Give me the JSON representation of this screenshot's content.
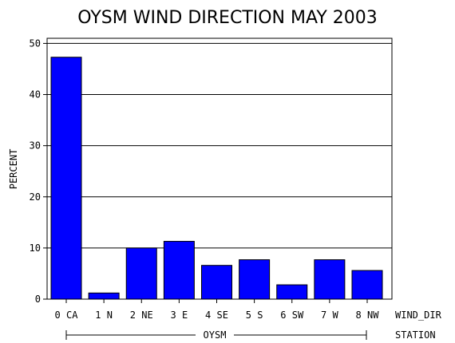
{
  "chart_data": {
    "type": "bar",
    "title": "OYSM WIND DIRECTION MAY 2003",
    "ylabel": "PERCENT",
    "xlabel": "WIND_DIR",
    "group_axis_label": "STATION",
    "group_label": "OYSM",
    "categories": [
      "0 CA",
      "1 N",
      "2 NE",
      "3 E",
      "4 SE",
      "5 S",
      "6 SW",
      "7 W",
      "8 NW"
    ],
    "values": [
      47.3,
      1.2,
      10.0,
      11.3,
      6.6,
      7.7,
      2.8,
      7.7,
      5.6
    ],
    "ylim": [
      0,
      51
    ],
    "yticks": [
      "0",
      "10",
      "20",
      "30",
      "40",
      "50"
    ],
    "grid": true,
    "bar_color": "#0000ff"
  }
}
